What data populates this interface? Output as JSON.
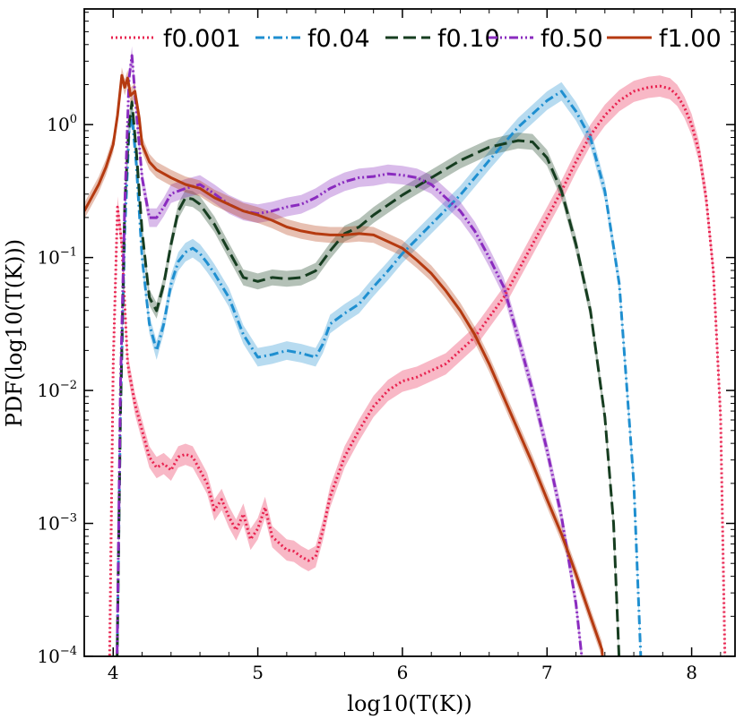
{
  "chart_data": {
    "type": "line",
    "xlabel": "log10(T(K))",
    "ylabel": "PDF(log10(T(K)))",
    "xlim": [
      3.8,
      8.3
    ],
    "ylim_log10": [
      -4,
      0.87
    ],
    "yscale": "log",
    "x_ticks": [
      {
        "value": 4,
        "label": "4"
      },
      {
        "value": 5,
        "label": "5"
      },
      {
        "value": 6,
        "label": "6"
      },
      {
        "value": 7,
        "label": "7"
      },
      {
        "value": 8,
        "label": "8"
      }
    ],
    "y_ticks": [
      {
        "exp": -4,
        "base": "10",
        "power": "−4"
      },
      {
        "exp": -3,
        "base": "10",
        "power": "−3"
      },
      {
        "exp": -2,
        "base": "10",
        "power": "−2"
      },
      {
        "exp": -1,
        "base": "10",
        "power": "−1"
      },
      {
        "exp": 0,
        "base": "10",
        "power": "0"
      }
    ],
    "legend_position": "top",
    "series": [
      {
        "name": "f0.001",
        "color": "#e8224f",
        "dash": "2,3",
        "band": 0.08,
        "points": [
          [
            3.97,
            -4.5
          ],
          [
            4.0,
            -1.8
          ],
          [
            4.03,
            -0.62
          ],
          [
            4.06,
            -0.9
          ],
          [
            4.1,
            -1.8
          ],
          [
            4.15,
            -2.1
          ],
          [
            4.2,
            -2.3
          ],
          [
            4.25,
            -2.5
          ],
          [
            4.3,
            -2.58
          ],
          [
            4.35,
            -2.55
          ],
          [
            4.4,
            -2.6
          ],
          [
            4.45,
            -2.5
          ],
          [
            4.5,
            -2.48
          ],
          [
            4.55,
            -2.5
          ],
          [
            4.6,
            -2.6
          ],
          [
            4.65,
            -2.7
          ],
          [
            4.7,
            -2.9
          ],
          [
            4.75,
            -2.82
          ],
          [
            4.8,
            -2.95
          ],
          [
            4.85,
            -3.05
          ],
          [
            4.9,
            -2.93
          ],
          [
            4.95,
            -3.12
          ],
          [
            5.0,
            -3.04
          ],
          [
            5.05,
            -2.88
          ],
          [
            5.1,
            -3.1
          ],
          [
            5.15,
            -3.15
          ],
          [
            5.2,
            -3.2
          ],
          [
            5.25,
            -3.21
          ],
          [
            5.3,
            -3.25
          ],
          [
            5.35,
            -3.28
          ],
          [
            5.4,
            -3.25
          ],
          [
            5.45,
            -3.05
          ],
          [
            5.5,
            -2.8
          ],
          [
            5.6,
            -2.5
          ],
          [
            5.7,
            -2.3
          ],
          [
            5.8,
            -2.12
          ],
          [
            5.9,
            -2.0
          ],
          [
            6.0,
            -1.93
          ],
          [
            6.1,
            -1.9
          ],
          [
            6.2,
            -1.85
          ],
          [
            6.3,
            -1.8
          ],
          [
            6.4,
            -1.7
          ],
          [
            6.5,
            -1.6
          ],
          [
            6.6,
            -1.45
          ],
          [
            6.7,
            -1.3
          ],
          [
            6.8,
            -1.1
          ],
          [
            6.9,
            -0.9
          ],
          [
            7.0,
            -0.7
          ],
          [
            7.1,
            -0.5
          ],
          [
            7.2,
            -0.28
          ],
          [
            7.3,
            -0.08
          ],
          [
            7.4,
            0.07
          ],
          [
            7.5,
            0.18
          ],
          [
            7.6,
            0.25
          ],
          [
            7.7,
            0.28
          ],
          [
            7.78,
            0.29
          ],
          [
            7.85,
            0.27
          ],
          [
            7.9,
            0.22
          ],
          [
            7.95,
            0.13
          ],
          [
            8.0,
            0.0
          ],
          [
            8.05,
            -0.2
          ],
          [
            8.1,
            -0.55
          ],
          [
            8.15,
            -1.1
          ],
          [
            8.2,
            -2.2
          ],
          [
            8.24,
            -4.6
          ]
        ]
      },
      {
        "name": "f0.04",
        "color": "#1f8fd0",
        "dash": "10,4,2,4",
        "band": 0.07,
        "points": [
          [
            4.02,
            -4.6
          ],
          [
            4.05,
            -2.2
          ],
          [
            4.08,
            -0.8
          ],
          [
            4.11,
            -0.05
          ],
          [
            4.13,
            0.07
          ],
          [
            4.16,
            -0.3
          ],
          [
            4.2,
            -1.0
          ],
          [
            4.25,
            -1.5
          ],
          [
            4.3,
            -1.7
          ],
          [
            4.35,
            -1.5
          ],
          [
            4.4,
            -1.2
          ],
          [
            4.45,
            -1.03
          ],
          [
            4.5,
            -0.96
          ],
          [
            4.55,
            -0.93
          ],
          [
            4.6,
            -0.97
          ],
          [
            4.65,
            -1.04
          ],
          [
            4.7,
            -1.12
          ],
          [
            4.8,
            -1.3
          ],
          [
            4.9,
            -1.58
          ],
          [
            5.0,
            -1.75
          ],
          [
            5.1,
            -1.73
          ],
          [
            5.2,
            -1.7
          ],
          [
            5.3,
            -1.72
          ],
          [
            5.4,
            -1.75
          ],
          [
            5.45,
            -1.65
          ],
          [
            5.5,
            -1.5
          ],
          [
            5.6,
            -1.42
          ],
          [
            5.7,
            -1.35
          ],
          [
            5.8,
            -1.22
          ],
          [
            5.9,
            -1.1
          ],
          [
            6.0,
            -0.97
          ],
          [
            6.2,
            -0.75
          ],
          [
            6.4,
            -0.53
          ],
          [
            6.6,
            -0.27
          ],
          [
            6.8,
            -0.02
          ],
          [
            7.0,
            0.18
          ],
          [
            7.1,
            0.25
          ],
          [
            7.2,
            0.1
          ],
          [
            7.3,
            -0.1
          ],
          [
            7.4,
            -0.5
          ],
          [
            7.5,
            -1.2
          ],
          [
            7.6,
            -2.7
          ],
          [
            7.67,
            -4.6
          ]
        ]
      },
      {
        "name": "f0.10",
        "color": "#163d20",
        "dash": "14,6",
        "band": 0.06,
        "points": [
          [
            4.02,
            -4.6
          ],
          [
            4.05,
            -2.2
          ],
          [
            4.08,
            -0.6
          ],
          [
            4.11,
            0.0
          ],
          [
            4.13,
            0.17
          ],
          [
            4.16,
            -0.2
          ],
          [
            4.2,
            -0.8
          ],
          [
            4.25,
            -1.3
          ],
          [
            4.3,
            -1.4
          ],
          [
            4.35,
            -1.2
          ],
          [
            4.4,
            -0.9
          ],
          [
            4.45,
            -0.65
          ],
          [
            4.5,
            -0.55
          ],
          [
            4.55,
            -0.56
          ],
          [
            4.6,
            -0.6
          ],
          [
            4.7,
            -0.75
          ],
          [
            4.8,
            -0.95
          ],
          [
            4.9,
            -1.15
          ],
          [
            5.0,
            -1.18
          ],
          [
            5.1,
            -1.15
          ],
          [
            5.2,
            -1.16
          ],
          [
            5.3,
            -1.15
          ],
          [
            5.4,
            -1.1
          ],
          [
            5.5,
            -0.95
          ],
          [
            5.6,
            -0.82
          ],
          [
            5.7,
            -0.77
          ],
          [
            5.8,
            -0.68
          ],
          [
            6.0,
            -0.53
          ],
          [
            6.2,
            -0.4
          ],
          [
            6.4,
            -0.27
          ],
          [
            6.6,
            -0.17
          ],
          [
            6.8,
            -0.12
          ],
          [
            6.9,
            -0.13
          ],
          [
            7.0,
            -0.25
          ],
          [
            7.1,
            -0.5
          ],
          [
            7.2,
            -0.9
          ],
          [
            7.3,
            -1.4
          ],
          [
            7.4,
            -2.2
          ],
          [
            7.46,
            -3.0
          ],
          [
            7.52,
            -4.6
          ]
        ]
      },
      {
        "name": "f0.50",
        "color": "#8a2bbf",
        "dash": "10,3,2,3,2,3",
        "band": 0.07,
        "points": [
          [
            4.02,
            -4.6
          ],
          [
            4.05,
            -2.0
          ],
          [
            4.08,
            -0.6
          ],
          [
            4.11,
            0.35
          ],
          [
            4.13,
            0.52
          ],
          [
            4.16,
            0.1
          ],
          [
            4.2,
            -0.4
          ],
          [
            4.25,
            -0.7
          ],
          [
            4.3,
            -0.7
          ],
          [
            4.35,
            -0.62
          ],
          [
            4.4,
            -0.52
          ],
          [
            4.5,
            -0.48
          ],
          [
            4.6,
            -0.45
          ],
          [
            4.7,
            -0.52
          ],
          [
            4.8,
            -0.6
          ],
          [
            4.9,
            -0.65
          ],
          [
            5.0,
            -0.67
          ],
          [
            5.1,
            -0.65
          ],
          [
            5.2,
            -0.62
          ],
          [
            5.3,
            -0.6
          ],
          [
            5.4,
            -0.55
          ],
          [
            5.5,
            -0.48
          ],
          [
            5.6,
            -0.43
          ],
          [
            5.7,
            -0.4
          ],
          [
            5.8,
            -0.39
          ],
          [
            5.9,
            -0.37
          ],
          [
            6.0,
            -0.38
          ],
          [
            6.1,
            -0.4
          ],
          [
            6.2,
            -0.45
          ],
          [
            6.3,
            -0.55
          ],
          [
            6.4,
            -0.65
          ],
          [
            6.5,
            -0.8
          ],
          [
            6.6,
            -1.0
          ],
          [
            6.7,
            -1.22
          ],
          [
            6.8,
            -1.6
          ],
          [
            6.9,
            -2.0
          ],
          [
            7.0,
            -2.45
          ],
          [
            7.1,
            -2.95
          ],
          [
            7.2,
            -3.6
          ],
          [
            7.3,
            -4.6
          ]
        ]
      },
      {
        "name": "f1.00",
        "color": "#b53a10",
        "dash": "",
        "band": 0.06,
        "points": [
          [
            3.8,
            -0.65
          ],
          [
            3.85,
            -0.55
          ],
          [
            3.9,
            -0.45
          ],
          [
            3.95,
            -0.32
          ],
          [
            4.0,
            -0.15
          ],
          [
            4.03,
            0.07
          ],
          [
            4.06,
            0.37
          ],
          [
            4.08,
            0.28
          ],
          [
            4.1,
            0.35
          ],
          [
            4.12,
            0.22
          ],
          [
            4.15,
            0.25
          ],
          [
            4.18,
            0.05
          ],
          [
            4.2,
            -0.15
          ],
          [
            4.25,
            -0.28
          ],
          [
            4.3,
            -0.34
          ],
          [
            4.4,
            -0.4
          ],
          [
            4.5,
            -0.45
          ],
          [
            4.6,
            -0.48
          ],
          [
            4.7,
            -0.55
          ],
          [
            4.8,
            -0.6
          ],
          [
            4.9,
            -0.65
          ],
          [
            5.0,
            -0.68
          ],
          [
            5.1,
            -0.72
          ],
          [
            5.2,
            -0.77
          ],
          [
            5.3,
            -0.8
          ],
          [
            5.4,
            -0.82
          ],
          [
            5.5,
            -0.83
          ],
          [
            5.6,
            -0.83
          ],
          [
            5.7,
            -0.82
          ],
          [
            5.8,
            -0.83
          ],
          [
            5.9,
            -0.88
          ],
          [
            6.0,
            -0.93
          ],
          [
            6.1,
            -1.02
          ],
          [
            6.2,
            -1.12
          ],
          [
            6.3,
            -1.25
          ],
          [
            6.4,
            -1.4
          ],
          [
            6.5,
            -1.58
          ],
          [
            6.6,
            -1.8
          ],
          [
            6.7,
            -2.05
          ],
          [
            6.8,
            -2.3
          ],
          [
            6.9,
            -2.55
          ],
          [
            7.0,
            -2.82
          ],
          [
            7.1,
            -3.08
          ],
          [
            7.2,
            -3.38
          ],
          [
            7.3,
            -3.7
          ],
          [
            7.38,
            -3.95
          ],
          [
            7.42,
            -4.6
          ]
        ]
      }
    ]
  }
}
